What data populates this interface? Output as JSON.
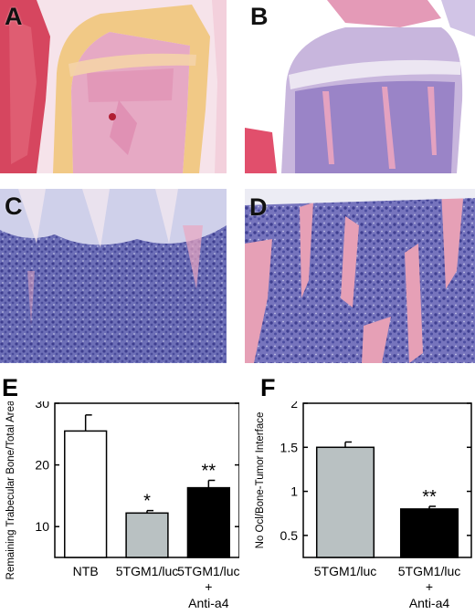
{
  "panels": {
    "a": {
      "letter": "A"
    },
    "b": {
      "letter": "B"
    },
    "c": {
      "letter": "C"
    },
    "d": {
      "letter": "D"
    },
    "e": {
      "letter": "E"
    },
    "f": {
      "letter": "F"
    }
  },
  "colors": {
    "ntb_bar": "#ffffff",
    "tumor_bar": "#b9c1c2",
    "treated_bar": "#000000",
    "tissue_pink": "#e99aae",
    "tissue_purple": "#8a86c4",
    "bone_yellow": "#f1c986"
  },
  "chart_data": [
    {
      "type": "bar",
      "panel": "E",
      "ylabel": "Remaining Trabecular Bone/Total Area (%)",
      "ylim": [
        5,
        30
      ],
      "yticks": [
        10,
        20,
        30
      ],
      "categories": [
        {
          "line1": "NTB",
          "line2": "",
          "line3": ""
        },
        {
          "line1": "5TGM1/luc",
          "line2": "",
          "line3": ""
        },
        {
          "line1": "5TGM1/luc",
          "line2": "+",
          "line3": "Anti-a4"
        }
      ],
      "values": [
        25.5,
        12.2,
        16.3
      ],
      "errors": [
        2.6,
        0.4,
        1.2
      ],
      "significance": [
        "",
        "*",
        "**"
      ]
    },
    {
      "type": "bar",
      "panel": "F",
      "ylabel": "No Ocl/Bone-Tumor Interface",
      "ylim": [
        0.25,
        2
      ],
      "yticks": [
        0.5,
        1,
        1.5,
        2
      ],
      "categories": [
        {
          "line1": "5TGM1/luc",
          "line2": "",
          "line3": ""
        },
        {
          "line1": "5TGM1/luc",
          "line2": "+",
          "line3": "Anti-a4"
        }
      ],
      "values": [
        1.5,
        0.8
      ],
      "errors": [
        0.06,
        0.03
      ],
      "significance": [
        "",
        "**"
      ]
    }
  ]
}
